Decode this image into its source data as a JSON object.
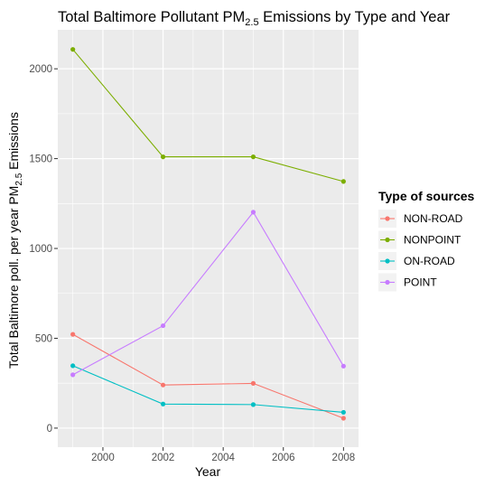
{
  "chart_data": {
    "type": "line",
    "title": {
      "prefix": "Total Baltimore Pollutant  PM",
      "sub": "2.5",
      "suffix": " Emissions by Type and Year"
    },
    "xlabel": "Year",
    "ylabel": {
      "prefix": "Total Baltimore poll. per year  PM",
      "sub": "2.5",
      "suffix": " Emissions"
    },
    "xlim": [
      1998.5,
      2008.5
    ],
    "ylim": [
      -106,
      2217
    ],
    "x_ticks": [
      2000,
      2002,
      2004,
      2006,
      2008
    ],
    "x_tick_labels": [
      "2000",
      "2002",
      "2004",
      "2006",
      "2008"
    ],
    "y_ticks": [
      0,
      500,
      1000,
      1500,
      2000
    ],
    "y_tick_labels": [
      "0",
      "500",
      "1000",
      "1500",
      "2000"
    ],
    "x": [
      1999,
      2002,
      2005,
      2008
    ],
    "legend_title": "Type of sources",
    "legend_position": "right",
    "series": [
      {
        "name": "NON-ROAD",
        "color": "#F8766D",
        "values": [
          522,
          240,
          249,
          55
        ]
      },
      {
        "name": "NONPOINT",
        "color": "#7CAE00",
        "values": [
          2108,
          1510,
          1510,
          1373
        ]
      },
      {
        "name": "ON-ROAD",
        "color": "#00BFC4",
        "values": [
          347,
          134,
          131,
          88
        ]
      },
      {
        "name": "POINT",
        "color": "#C77CFF",
        "values": [
          297,
          570,
          1202,
          345
        ]
      }
    ],
    "panel_background": "#EBEBEB",
    "grid_color": "#FFFFFF"
  }
}
